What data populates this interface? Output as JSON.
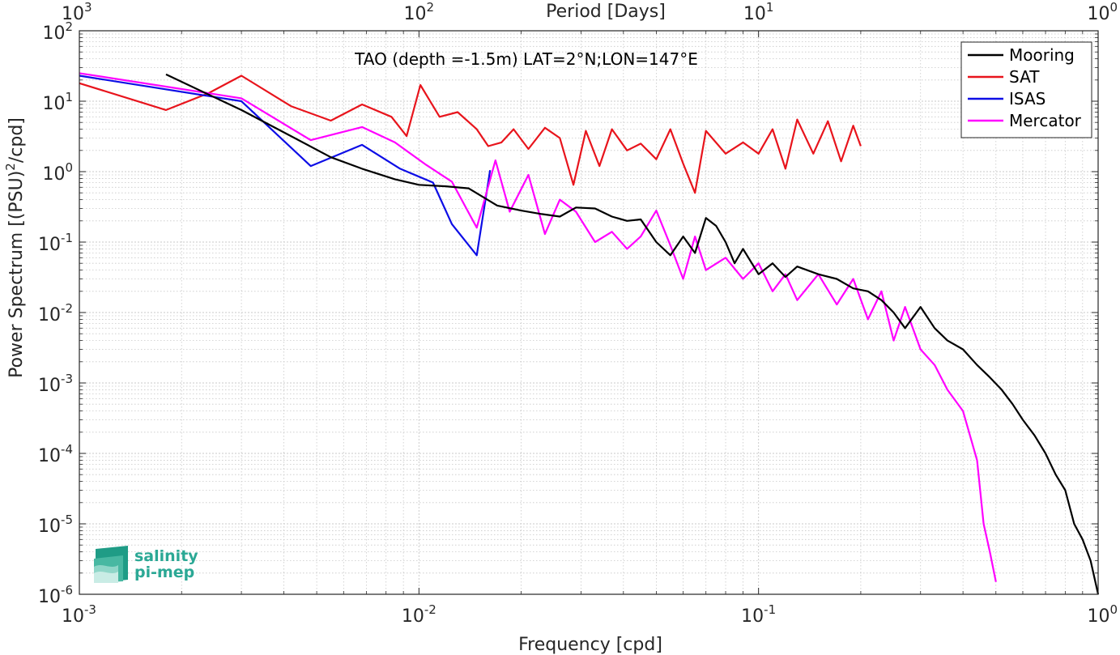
{
  "chart_data": {
    "type": "line",
    "title": "TAO (depth =-1.5m) LAT=2°N;LON=147°E",
    "xlabel": "Frequency [cpd]",
    "ylabel": "Power Spectrum [(PSU)²/cpd]",
    "ylabel_main": "Power Spectrum [(PSU)",
    "ylabel_sup": "2",
    "ylabel_tail": "/cpd]",
    "top_xlabel": "Period [Days]",
    "x_scale": "log",
    "y_scale": "log",
    "xlim": [
      0.001,
      1
    ],
    "ylim": [
      1e-06,
      100
    ],
    "grid": true,
    "minor_grid": true,
    "legend_position": "top-right",
    "x_ticks": [
      {
        "value": 0.001,
        "base": "10",
        "exp": "-3"
      },
      {
        "value": 0.01,
        "base": "10",
        "exp": "-2"
      },
      {
        "value": 0.1,
        "base": "10",
        "exp": "-1"
      },
      {
        "value": 1,
        "base": "10",
        "exp": "0"
      }
    ],
    "top_ticks": [
      {
        "value": 0.001,
        "base": "10",
        "exp": "3"
      },
      {
        "value": 0.01,
        "base": "10",
        "exp": "2"
      },
      {
        "value": 0.1,
        "base": "10",
        "exp": "1"
      },
      {
        "value": 1,
        "base": "10",
        "exp": "0"
      }
    ],
    "y_ticks": [
      {
        "value": 100,
        "base": "10",
        "exp": "2"
      },
      {
        "value": 10,
        "base": "10",
        "exp": "1"
      },
      {
        "value": 1,
        "base": "10",
        "exp": "0"
      },
      {
        "value": 0.1,
        "base": "10",
        "exp": "-1"
      },
      {
        "value": 0.01,
        "base": "10",
        "exp": "-2"
      },
      {
        "value": 0.001,
        "base": "10",
        "exp": "-3"
      },
      {
        "value": 0.0001,
        "base": "10",
        "exp": "-4"
      },
      {
        "value": 1e-05,
        "base": "10",
        "exp": "-5"
      },
      {
        "value": 1e-06,
        "base": "10",
        "exp": "-6"
      }
    ],
    "series": [
      {
        "name": "Mooring",
        "color": "#000000",
        "x": [
          0.0018,
          0.003,
          0.0042,
          0.0055,
          0.0068,
          0.0085,
          0.01,
          0.012,
          0.014,
          0.017,
          0.02,
          0.023,
          0.026,
          0.029,
          0.033,
          0.037,
          0.041,
          0.045,
          0.05,
          0.055,
          0.06,
          0.065,
          0.07,
          0.075,
          0.08,
          0.085,
          0.09,
          0.1,
          0.11,
          0.12,
          0.13,
          0.15,
          0.17,
          0.19,
          0.21,
          0.23,
          0.25,
          0.27,
          0.3,
          0.33,
          0.36,
          0.4,
          0.44,
          0.48,
          0.52,
          0.56,
          0.6,
          0.65,
          0.7,
          0.75,
          0.8,
          0.85,
          0.9,
          0.95,
          1.0
        ],
        "y": [
          24,
          7.5,
          3.2,
          1.6,
          1.1,
          0.78,
          0.65,
          0.62,
          0.58,
          0.33,
          0.28,
          0.25,
          0.23,
          0.31,
          0.3,
          0.23,
          0.2,
          0.21,
          0.1,
          0.065,
          0.12,
          0.07,
          0.22,
          0.17,
          0.1,
          0.05,
          0.08,
          0.035,
          0.05,
          0.032,
          0.045,
          0.035,
          0.03,
          0.022,
          0.02,
          0.015,
          0.01,
          0.006,
          0.012,
          0.006,
          0.004,
          0.003,
          0.0018,
          0.0012,
          0.0008,
          0.0005,
          0.0003,
          0.00018,
          0.0001,
          5e-05,
          3e-05,
          1e-05,
          6e-06,
          3e-06,
          9e-07
        ]
      },
      {
        "name": "SAT",
        "color": "#e8141c",
        "x": [
          0.001,
          0.0018,
          0.0024,
          0.003,
          0.0042,
          0.0055,
          0.0068,
          0.0083,
          0.0092,
          0.0101,
          0.0115,
          0.013,
          0.0148,
          0.016,
          0.0175,
          0.019,
          0.021,
          0.0235,
          0.026,
          0.0285,
          0.031,
          0.034,
          0.037,
          0.041,
          0.045,
          0.05,
          0.055,
          0.06,
          0.065,
          0.07,
          0.08,
          0.09,
          0.1,
          0.11,
          0.12,
          0.13,
          0.145,
          0.16,
          0.175,
          0.19,
          0.2
        ],
        "y": [
          18,
          7.5,
          13,
          23,
          8.5,
          5.3,
          9,
          6,
          3.2,
          17,
          6,
          7,
          4,
          2.3,
          2.6,
          4,
          2.1,
          4.2,
          3,
          0.65,
          3.8,
          1.2,
          4,
          2,
          2.5,
          1.5,
          4,
          1.3,
          0.5,
          3.8,
          1.8,
          2.6,
          1.8,
          4,
          1.1,
          5.5,
          1.8,
          5.2,
          1.4,
          4.5,
          2.3
        ]
      },
      {
        "name": "ISAS",
        "color": "#0d0de6",
        "x": [
          0.001,
          0.003,
          0.0048,
          0.0068,
          0.0088,
          0.011,
          0.0125,
          0.0148,
          0.0162
        ],
        "y": [
          23,
          10,
          1.2,
          2.4,
          1.1,
          0.7,
          0.18,
          0.065,
          1.05
        ]
      },
      {
        "name": "Mercator",
        "color": "#ff00ff",
        "x": [
          0.001,
          0.003,
          0.0048,
          0.0068,
          0.0085,
          0.0105,
          0.0125,
          0.0148,
          0.0168,
          0.0185,
          0.021,
          0.0235,
          0.026,
          0.029,
          0.033,
          0.037,
          0.041,
          0.045,
          0.05,
          0.055,
          0.06,
          0.065,
          0.07,
          0.08,
          0.09,
          0.1,
          0.11,
          0.12,
          0.13,
          0.15,
          0.17,
          0.19,
          0.21,
          0.23,
          0.25,
          0.27,
          0.3,
          0.33,
          0.36,
          0.4,
          0.44,
          0.46,
          0.48,
          0.5
        ],
        "y": [
          25,
          11,
          2.8,
          4.3,
          2.6,
          1.25,
          0.72,
          0.16,
          1.45,
          0.27,
          0.9,
          0.13,
          0.4,
          0.27,
          0.1,
          0.14,
          0.08,
          0.12,
          0.28,
          0.09,
          0.03,
          0.12,
          0.04,
          0.06,
          0.03,
          0.05,
          0.02,
          0.035,
          0.015,
          0.035,
          0.013,
          0.03,
          0.008,
          0.02,
          0.004,
          0.012,
          0.003,
          0.0018,
          0.0008,
          0.0004,
          8e-05,
          1e-05,
          4e-06,
          1.5e-06
        ]
      }
    ]
  },
  "logo": {
    "line1": "salinity",
    "line2": "pi-mep"
  }
}
